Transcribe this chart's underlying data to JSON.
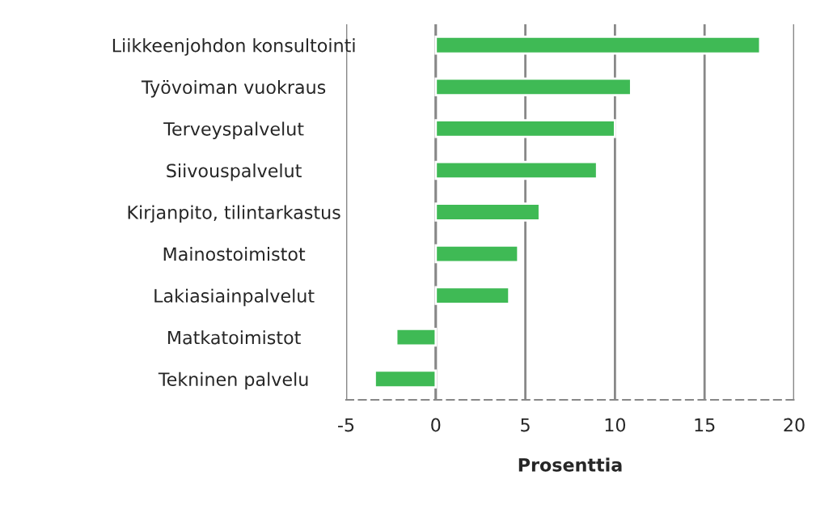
{
  "chart_data": {
    "type": "bar",
    "orientation": "horizontal",
    "xlabel": "Prosenttia",
    "categories": [
      "Liikkeenjohdon konsultointi",
      "Työvoiman vuokraus",
      "Terveyspalvelut",
      "Siivouspalvelut",
      "Kirjanpito, tilintarkastus",
      "Mainostoimistot",
      "Lakiasiainpalvelut",
      "Matkatoimistot",
      "Tekninen palvelu"
    ],
    "values": [
      18.1,
      10.9,
      10.0,
      9.0,
      5.8,
      4.6,
      4.1,
      -2.2,
      -3.4
    ],
    "color": "#3fba55",
    "xlim": [
      -5,
      20
    ],
    "xticks": [
      -5,
      0,
      5,
      10,
      15,
      20
    ],
    "grid": "x",
    "legend": false
  }
}
